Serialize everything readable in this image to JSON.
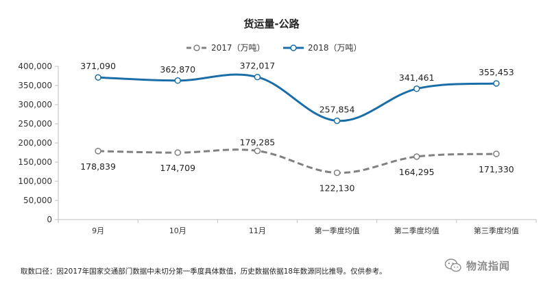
{
  "chart_data": {
    "type": "line",
    "title": "货运量-公路",
    "categories": [
      "9月",
      "10月",
      "11月",
      "第一季度均值",
      "第二季度均值",
      "第三季度均值"
    ],
    "series": [
      {
        "name": "2017（万吨）",
        "values": [
          178839,
          174709,
          179285,
          122130,
          164295,
          171330
        ],
        "labels": [
          "178,839",
          "174,709",
          "179,285",
          "122,130",
          "164,295",
          "171,330"
        ],
        "color": "#808080",
        "dashed": true
      },
      {
        "name": "2018（万吨）",
        "values": [
          371090,
          362870,
          372017,
          257854,
          341461,
          355453
        ],
        "labels": [
          "371,090",
          "362,870",
          "372,017",
          "257,854",
          "341,461",
          "355,453"
        ],
        "color": "#1a6ea8",
        "dashed": false
      }
    ],
    "yticks": [
      "0",
      "50,000",
      "100,000",
      "150,000",
      "200,000",
      "250,000",
      "300,000",
      "350,000",
      "400,000"
    ],
    "ylim": [
      0,
      400000
    ],
    "legend_position": "top-center",
    "grid": false
  },
  "footnote": "取数口径：因2017年国家交通部门数据中未切分第一季度具体数值，历史数据依据18年数源同比推导。仅供参考。",
  "watermark": {
    "text": "物流指闻",
    "icon": "wechat-icon"
  }
}
